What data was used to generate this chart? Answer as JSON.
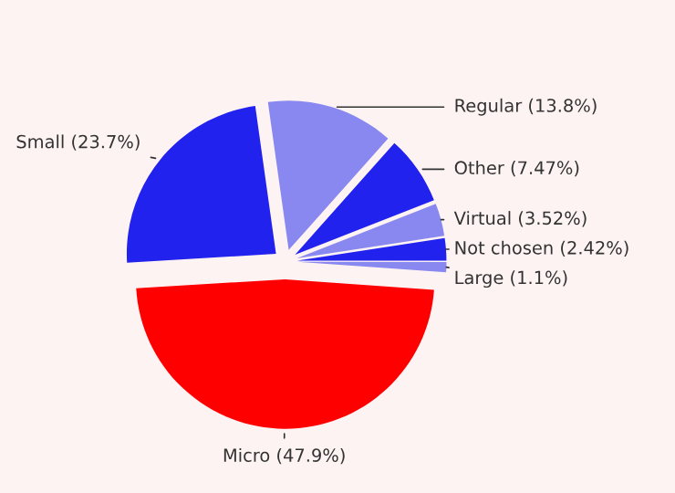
{
  "chart_data": {
    "type": "pie",
    "categories": [
      "Micro (47.9%)",
      "Small (23.7%)",
      "Regular (13.8%)",
      "Other (7.47%)",
      "Virtual (3.52%)",
      "Not chosen (2.42%)",
      "Large (1.1%)"
    ],
    "values": [
      47.9,
      23.7,
      13.8,
      7.47,
      3.52,
      2.42,
      1.1
    ],
    "colors": [
      "#ff0000",
      "#2222ee",
      "#8888f0",
      "#2222ee",
      "#8888f0",
      "#2222ee",
      "#8888f0"
    ]
  }
}
